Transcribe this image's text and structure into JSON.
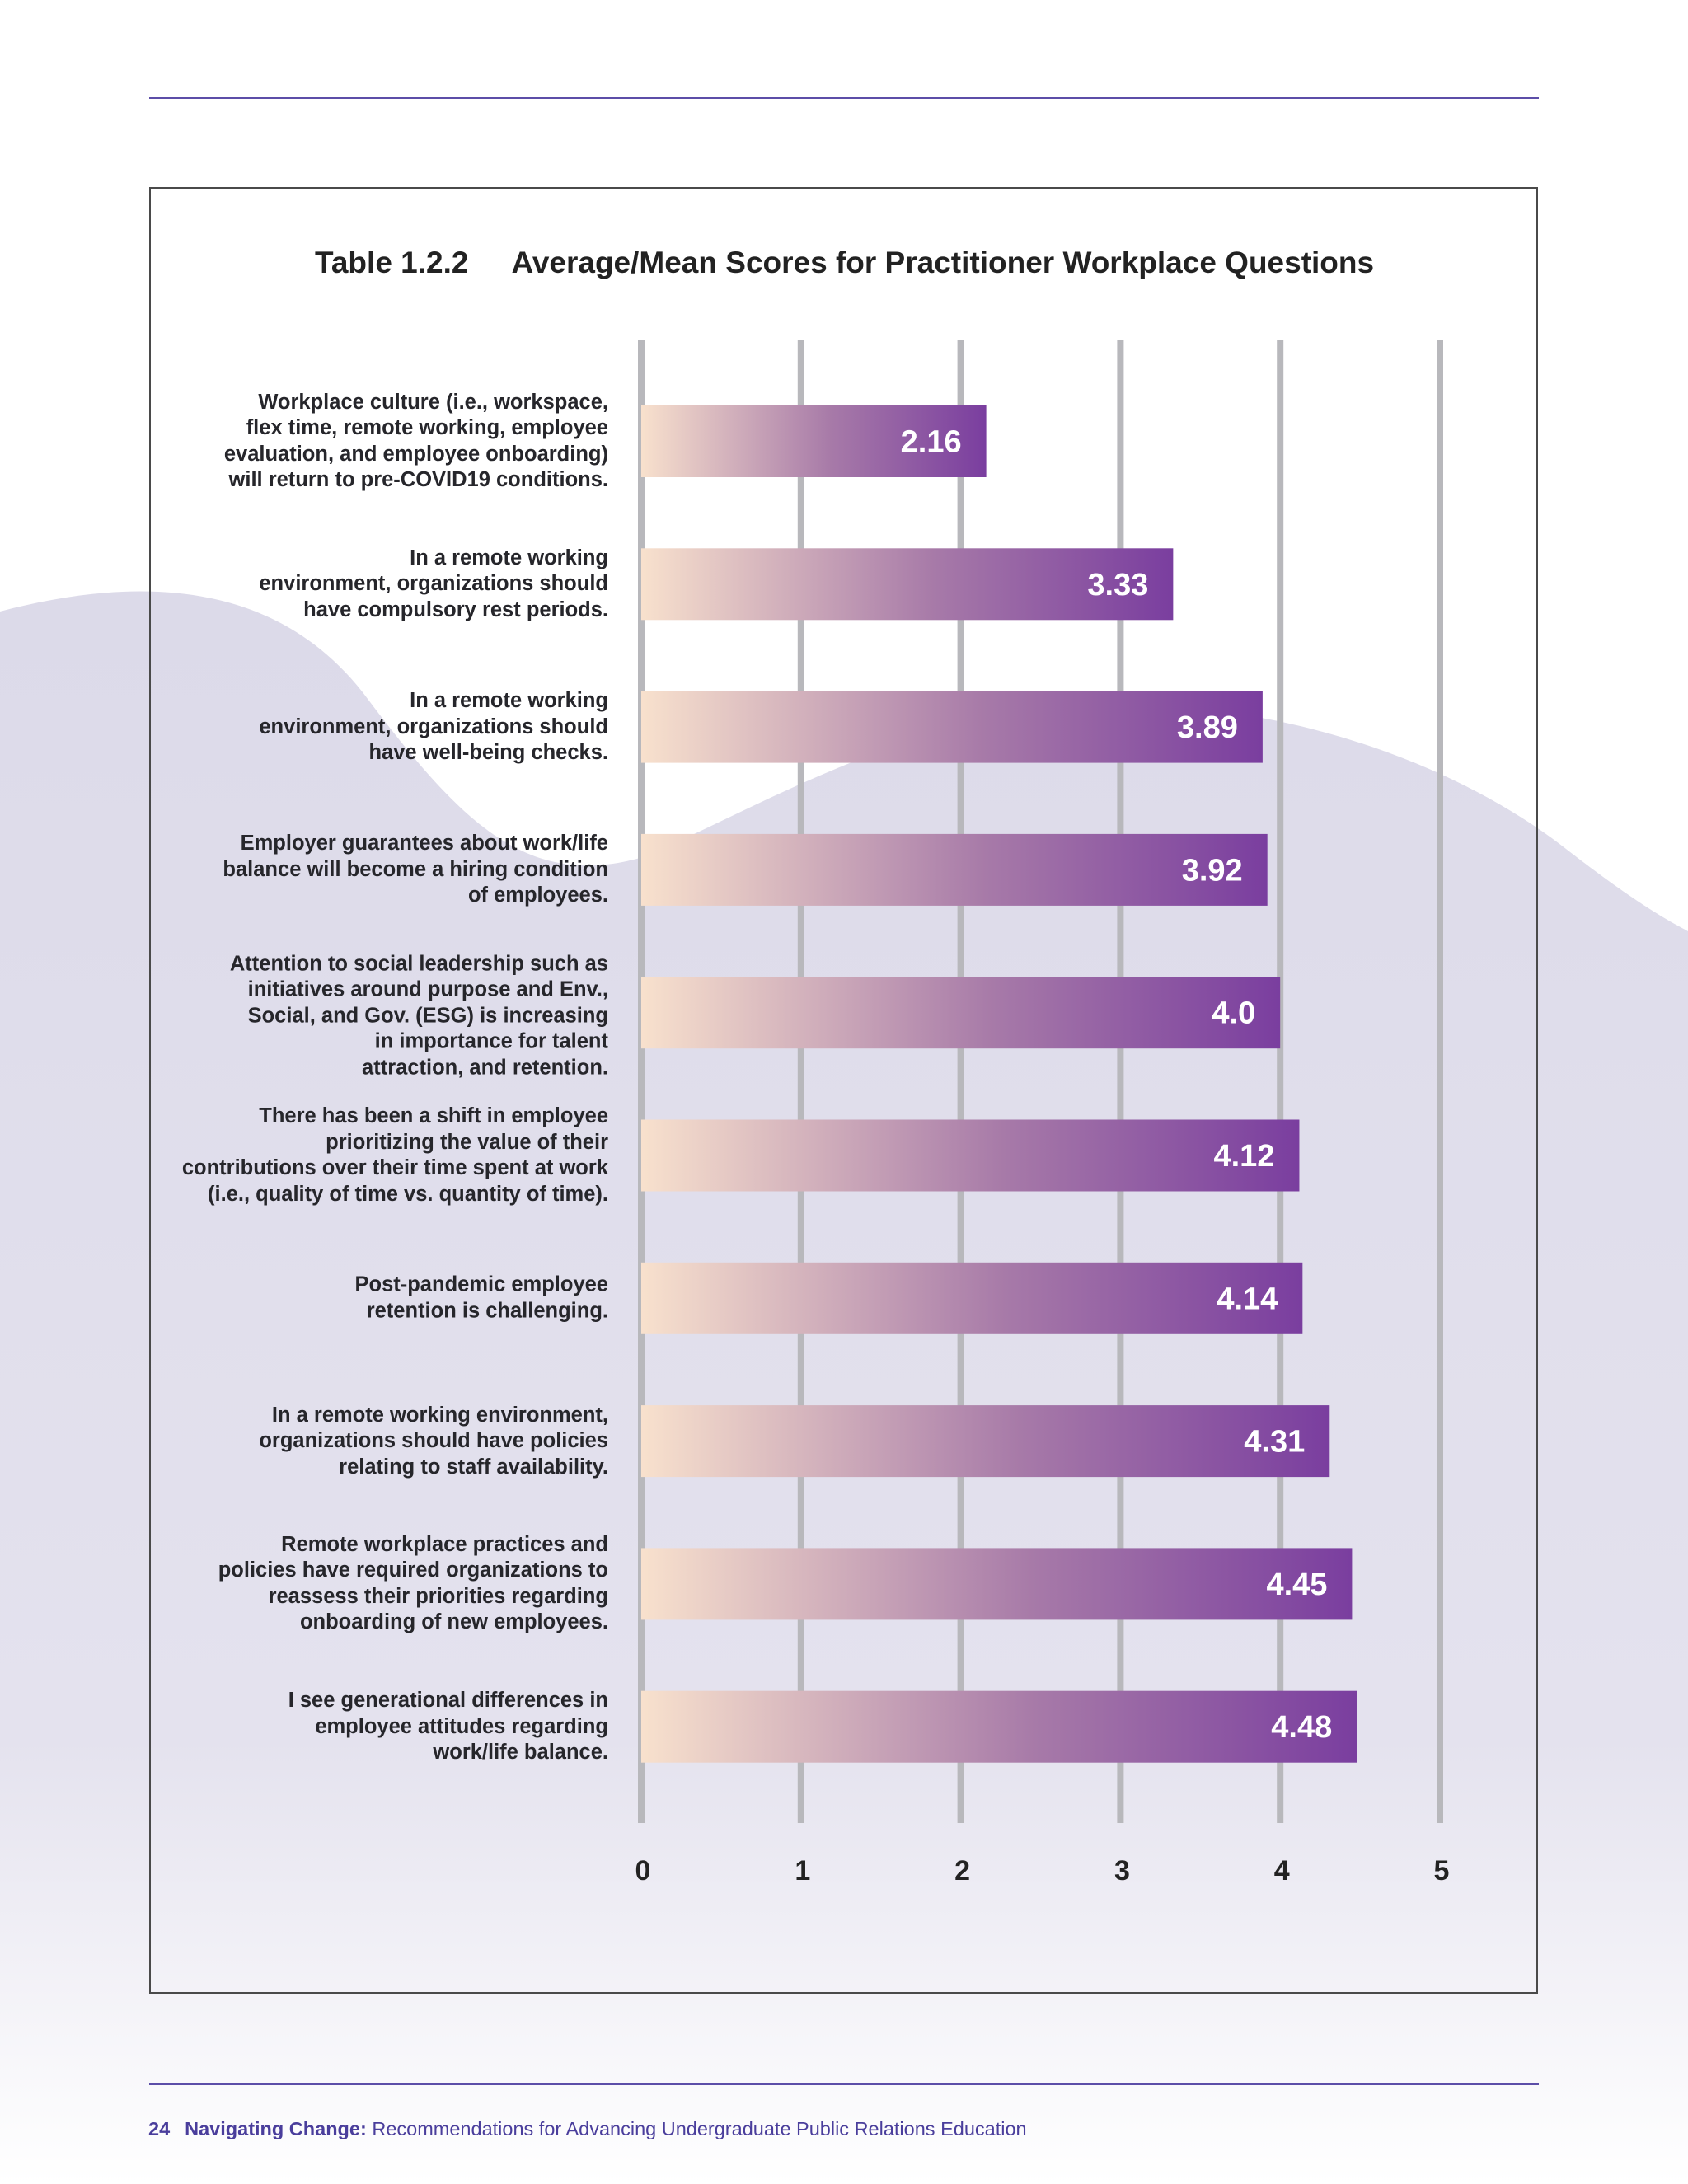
{
  "header": {
    "table_number": "Table 1.2.2",
    "table_title": "Average/Mean Scores for Practitioner Workplace Questions"
  },
  "colors": {
    "bar_start": "#f8e1cd",
    "bar_end": "#7a3e9f",
    "gridline": "#b8b8bc",
    "rule": "#5c4ea8",
    "background_shape": "#dedcea"
  },
  "chart_data": {
    "type": "bar",
    "orientation": "horizontal",
    "title": "Average/Mean Scores for Practitioner Workplace Questions",
    "xlim": [
      0,
      5
    ],
    "xticks": [
      "0",
      "1",
      "2",
      "3",
      "4",
      "5"
    ],
    "grid": true,
    "legend": "none",
    "categories": [
      "Workplace culture (i.e., workspace, flex time, remote working, employee evaluation, and employee onboarding) will return to pre-COVID19 conditions.",
      "In a remote working environment, organizations should have compulsory rest periods.",
      "In a remote working environment, organizations should have well-being checks.",
      "Employer guarantees about work/life balance will become a hiring condition of employees.",
      "Attention to social leadership such as initiatives around purpose and Env., Social, and Gov. (ESG) is increasing in importance for talent attraction, and retention.",
      "There has been a shift in employee prioritizing the value of their contributions over their time spent at work (i.e., quality of time vs. quantity of time).",
      "Post-pandemic employee retention is challenging.",
      "In a remote working environment, organizations should have policies relating to staff availability.",
      "Remote workplace practices and policies have required organizations to reassess their priorities regarding onboarding of new employees.",
      "I see generational differences in employee attitudes regarding work/life balance."
    ],
    "label_lines": [
      [
        "Workplace culture (i.e., workspace,",
        "flex time, remote working, employee",
        "evaluation, and employee onboarding)",
        "will return to pre-COVID19 conditions."
      ],
      [
        "In a remote working",
        "environment, organizations should",
        "have compulsory rest periods."
      ],
      [
        "In a remote working",
        "environment, organizations should",
        "have well-being checks."
      ],
      [
        "Employer guarantees about work/life",
        "balance will become a hiring condition",
        "of employees."
      ],
      [
        "Attention to social leadership such as",
        "initiatives around purpose and Env.,",
        "Social, and Gov. (ESG) is increasing",
        "in importance for talent",
        "attraction, and retention."
      ],
      [
        "There has been a shift in employee",
        "prioritizing the value of their",
        "contributions over their time spent at work",
        "(i.e., quality of time vs. quantity of time)."
      ],
      [
        "Post-pandemic employee",
        "retention is challenging."
      ],
      [
        "In a remote working environment,",
        "organizations should have policies",
        "relating to staff availability."
      ],
      [
        "Remote workplace practices and",
        "policies have required organizations to",
        "reassess their priorities regarding",
        "onboarding of new employees."
      ],
      [
        "I see generational differences in",
        "employee attitudes regarding",
        "work/life balance."
      ]
    ],
    "values": [
      2.16,
      3.33,
      3.89,
      3.92,
      4.0,
      4.12,
      4.14,
      4.31,
      4.45,
      4.48
    ],
    "value_labels": [
      "2.16",
      "3.33",
      "3.89",
      "3.92",
      "4.0",
      "4.12",
      "4.14",
      "4.31",
      "4.45",
      "4.48"
    ]
  },
  "footer": {
    "page_number": "24",
    "publication": "Navigating Change:",
    "subtitle": "Recommendations for Advancing Undergraduate Public Relations Education"
  }
}
